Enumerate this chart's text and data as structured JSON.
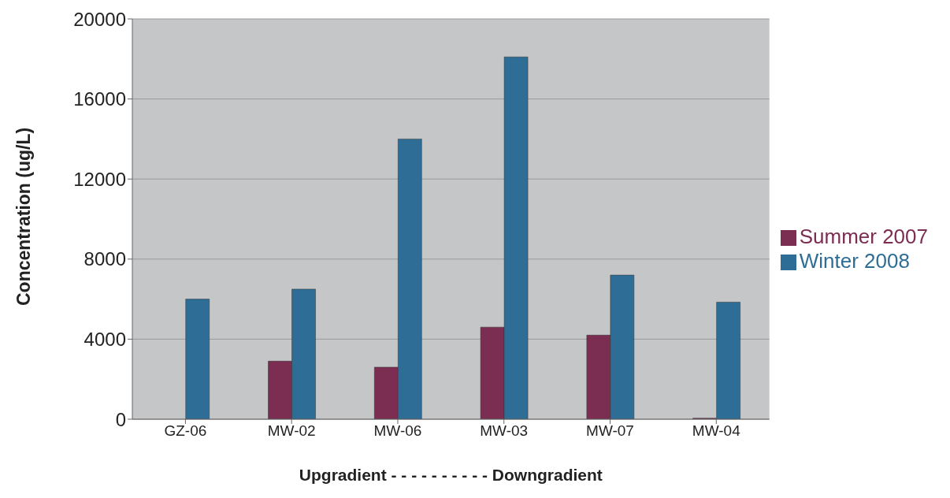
{
  "chart_data": {
    "type": "bar",
    "xlabel": "Upgradient - - - - - - - - - - Downgradient",
    "ylabel": "Concentration (ug/L)",
    "categories": [
      "GZ-06",
      "MW-02",
      "MW-06",
      "MW-03",
      "MW-07",
      "MW-04"
    ],
    "series": [
      {
        "name": "Summer 2007",
        "color": "#7b2d52",
        "values": [
          null,
          2900,
          2600,
          4600,
          4200,
          50
        ]
      },
      {
        "name": "Winter 2008",
        "color": "#2e6d95",
        "values": [
          6000,
          6500,
          14000,
          18100,
          7200,
          5850
        ]
      }
    ],
    "ylim": [
      0,
      20000
    ],
    "yticks": [
      0,
      4000,
      8000,
      12000,
      16000,
      20000
    ],
    "grid": "y",
    "legend": "right"
  }
}
